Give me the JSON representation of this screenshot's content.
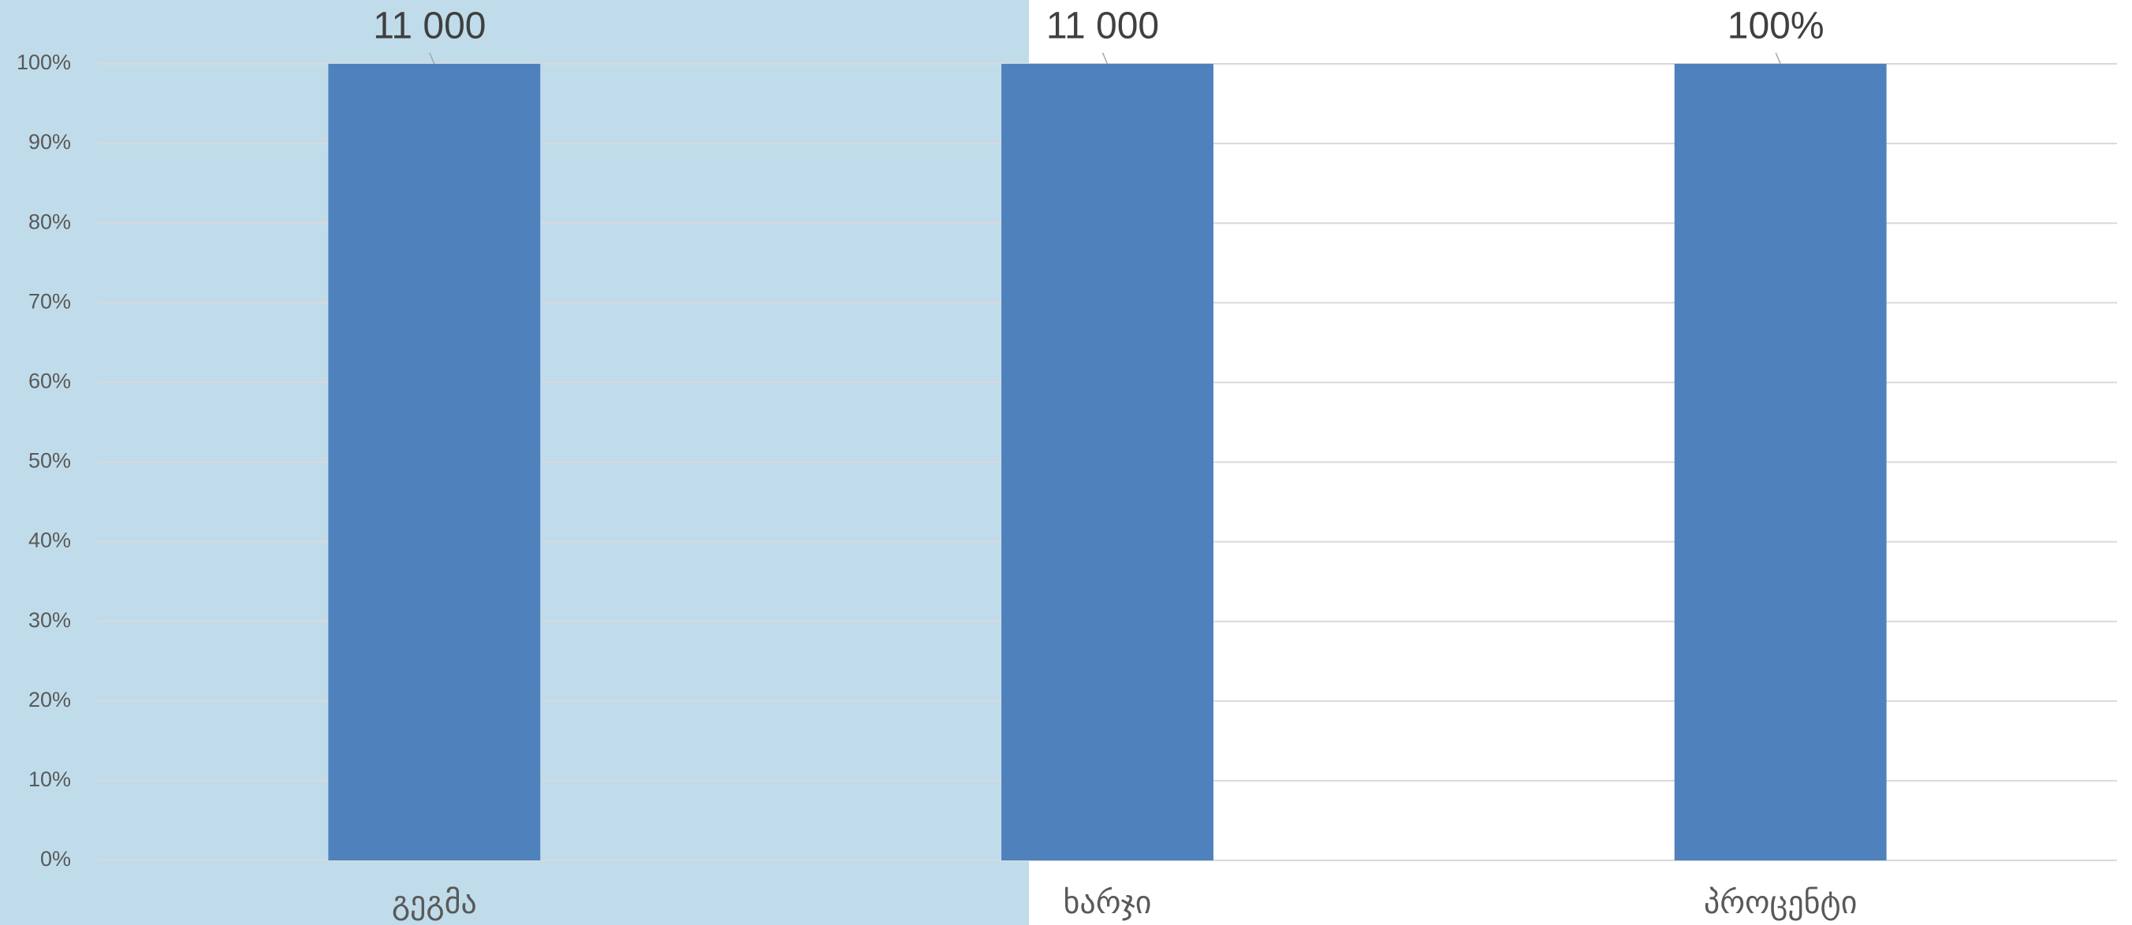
{
  "chart_data": {
    "type": "bar",
    "stacking": "percent",
    "categories": [
      "გეგმა",
      "ხარჯი",
      "პროცენტი"
    ],
    "series": [
      {
        "color": "#4f81bd",
        "values": [
          11000,
          11000,
          100
        ],
        "value_labels": [
          "11 000",
          "11 000",
          "100%"
        ]
      }
    ],
    "ylim": [
      0,
      100
    ],
    "yticks": [
      {
        "value": 0,
        "label": "0%"
      },
      {
        "value": 10,
        "label": "10%"
      },
      {
        "value": 20,
        "label": "20%"
      },
      {
        "value": 30,
        "label": "30%"
      },
      {
        "value": 40,
        "label": "40%"
      },
      {
        "value": 50,
        "label": "50%"
      },
      {
        "value": 60,
        "label": "60%"
      },
      {
        "value": 70,
        "label": "70%"
      },
      {
        "value": 80,
        "label": "80%"
      },
      {
        "value": 90,
        "label": "90%"
      },
      {
        "value": 100,
        "label": "100%"
      }
    ],
    "grid": true
  }
}
